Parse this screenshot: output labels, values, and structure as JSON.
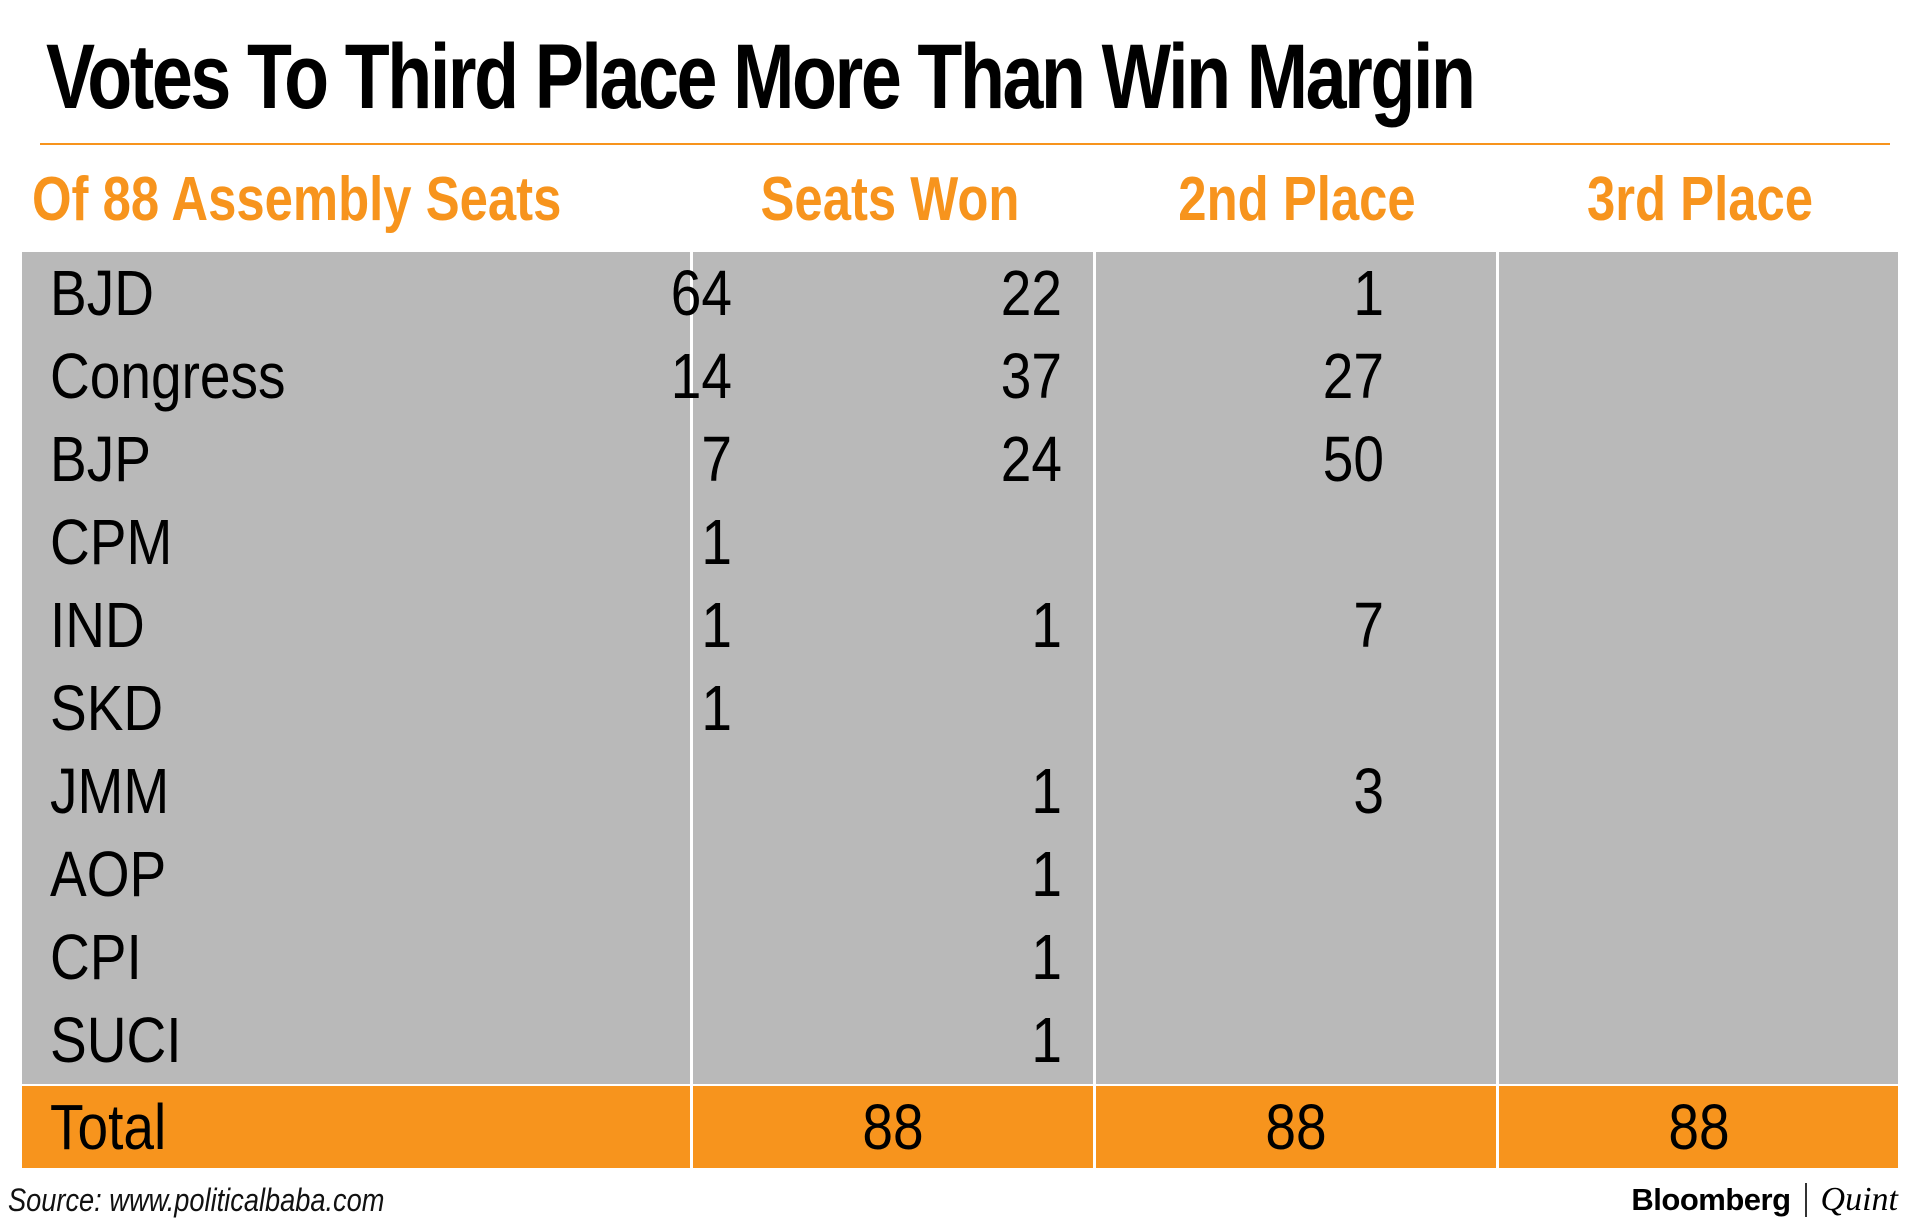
{
  "title": "Votes To Third Place More Than Win Margin",
  "headers": [
    "Of 88 Assembly Seats",
    "Seats Won",
    "2nd Place",
    "3rd Place"
  ],
  "source": "Source: www.politicalbaba.com",
  "brand": {
    "name": "Bloomberg",
    "suffix": "Quint"
  },
  "colors": {
    "accent": "#f7941d",
    "cell_bg": "#b9b9b9",
    "text": "#000000"
  },
  "chart_data": {
    "type": "table",
    "title": "Votes To Third Place More Than Win Margin",
    "columns": [
      "Of 88 Assembly Seats",
      "Seats Won",
      "2nd Place",
      "3rd Place"
    ],
    "rows": [
      {
        "party": "BJD",
        "values": [
          "64",
          "22",
          "1"
        ]
      },
      {
        "party": "Congress",
        "values": [
          "14",
          "37",
          "27"
        ]
      },
      {
        "party": "BJP",
        "values": [
          "7",
          "24",
          "50"
        ]
      },
      {
        "party": "CPM",
        "values": [
          "1",
          "",
          ""
        ]
      },
      {
        "party": "IND",
        "values": [
          "1",
          "1",
          "7"
        ]
      },
      {
        "party": "SKD",
        "values": [
          "1",
          "",
          ""
        ]
      },
      {
        "party": "JMM",
        "values": [
          "",
          "1",
          "3"
        ]
      },
      {
        "party": "AOP",
        "values": [
          "",
          "1",
          ""
        ]
      },
      {
        "party": "CPI",
        "values": [
          "",
          "1",
          ""
        ]
      },
      {
        "party": "SUCI",
        "values": [
          "",
          "1",
          ""
        ]
      }
    ],
    "total": {
      "label": "Total",
      "values": [
        "88",
        "88",
        "88"
      ]
    }
  }
}
